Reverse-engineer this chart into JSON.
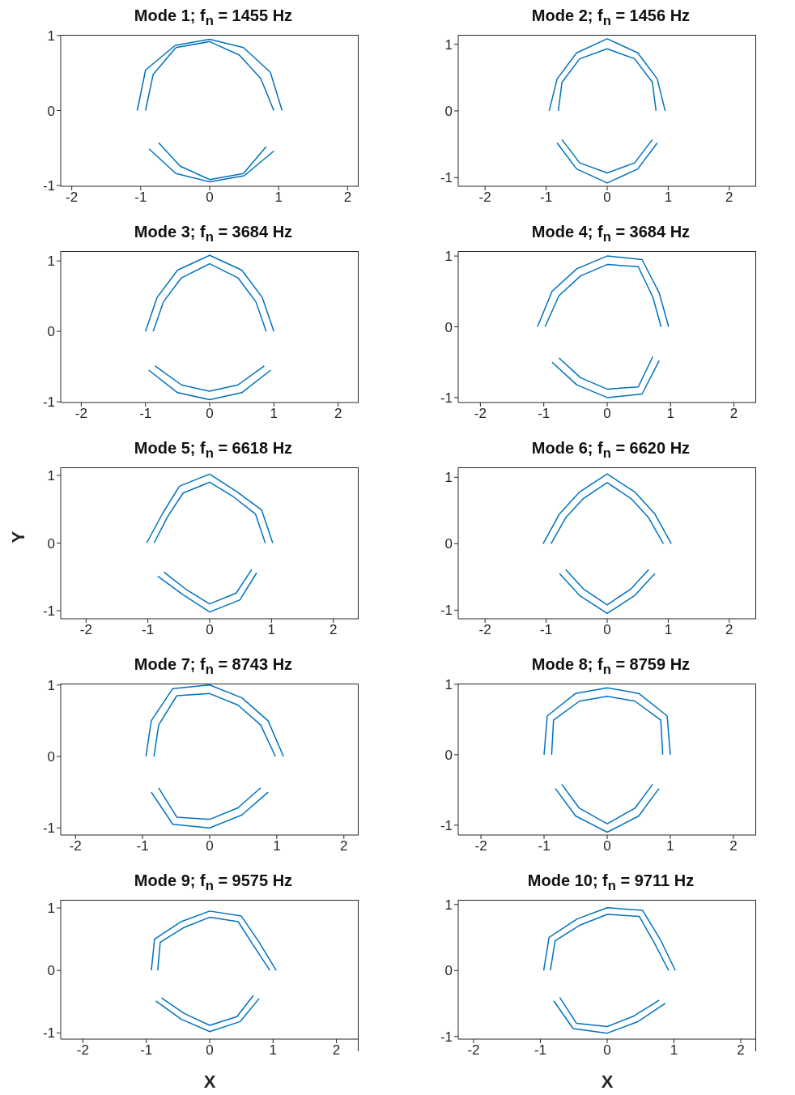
{
  "chart_data": [
    {
      "type": "line",
      "title": "Mode 1; f$_{n}$ = 1455 Hz",
      "xlim": [
        -2.16,
        2.16
      ],
      "ylim": [
        -1.01,
        1.01
      ],
      "xticks": [
        -2,
        -1,
        0,
        1,
        2
      ],
      "yticks": [
        -1,
        0,
        1
      ],
      "series": [
        {
          "color": "#0072bd",
          "x": [
            -1.05,
            -0.93,
            -0.5,
            0,
            0.49,
            0.88,
            1.05
          ],
          "values": [
            0,
            0.54,
            0.87,
            0.95,
            0.84,
            0.51,
            0
          ]
        },
        {
          "color": "#0072bd",
          "x": [
            -0.88,
            -0.49,
            0,
            0.5,
            0.93
          ],
          "values": [
            -0.51,
            -0.84,
            -0.95,
            -0.87,
            -0.54
          ]
        },
        {
          "color": "#0072bd",
          "x": [
            -0.93,
            -0.82,
            -0.49,
            0,
            0.43,
            0.74,
            0.93
          ],
          "values": [
            0,
            0.48,
            0.84,
            0.92,
            0.74,
            0.43,
            0
          ]
        },
        {
          "color": "#0072bd",
          "x": [
            -0.74,
            -0.43,
            0,
            0.49,
            0.82
          ],
          "values": [
            -0.43,
            -0.74,
            -0.92,
            -0.84,
            -0.48
          ]
        }
      ]
    },
    {
      "type": "line",
      "title": "Mode 2; f$_{n}$ = 1456 Hz",
      "xlim": [
        -2.44,
        2.44
      ],
      "ylim": [
        -1.13,
        1.14
      ],
      "xticks": [
        -2,
        -1,
        0,
        1,
        2
      ],
      "yticks": [
        -1,
        0,
        1
      ],
      "series": [
        {
          "color": "#0072bd",
          "x": [
            -0.95,
            -0.82,
            -0.5,
            0,
            0.5,
            0.82,
            0.95
          ],
          "values": [
            0,
            0.48,
            0.87,
            1.08,
            0.87,
            0.48,
            0
          ]
        },
        {
          "color": "#0072bd",
          "x": [
            -0.82,
            -0.5,
            0,
            0.5,
            0.82
          ],
          "values": [
            -0.48,
            -0.87,
            -1.08,
            -0.87,
            -0.48
          ]
        },
        {
          "color": "#0072bd",
          "x": [
            -0.8,
            -0.74,
            -0.45,
            0,
            0.45,
            0.74,
            0.8
          ],
          "values": [
            0,
            0.43,
            0.78,
            0.93,
            0.78,
            0.43,
            0
          ]
        },
        {
          "color": "#0072bd",
          "x": [
            -0.74,
            -0.45,
            0,
            0.45,
            0.74
          ],
          "values": [
            -0.43,
            -0.78,
            -0.93,
            -0.78,
            -0.43
          ]
        }
      ]
    },
    {
      "type": "line",
      "title": "Mode 3; f$_{n}$ = 3684 Hz",
      "xlim": [
        -2.32,
        2.32
      ],
      "ylim": [
        -1.01,
        1.14
      ],
      "xticks": [
        -2,
        -1,
        0,
        1,
        2
      ],
      "yticks": [
        -1,
        0,
        1
      ],
      "series": [
        {
          "color": "#0072bd",
          "x": [
            -1,
            -0.82,
            -0.5,
            0,
            0.5,
            0.82,
            1
          ],
          "values": [
            0,
            0.48,
            0.87,
            1.08,
            0.87,
            0.48,
            0
          ]
        },
        {
          "color": "#0072bd",
          "x": [
            -0.95,
            -0.5,
            0,
            0.5,
            0.95
          ],
          "values": [
            -0.55,
            -0.87,
            -0.97,
            -0.87,
            -0.55
          ]
        },
        {
          "color": "#0072bd",
          "x": [
            -0.88,
            -0.72,
            -0.44,
            0,
            0.44,
            0.72,
            0.88
          ],
          "values": [
            0,
            0.42,
            0.76,
            0.96,
            0.76,
            0.42,
            0
          ]
        },
        {
          "color": "#0072bd",
          "x": [
            -0.85,
            -0.44,
            0,
            0.44,
            0.85
          ],
          "values": [
            -0.49,
            -0.76,
            -0.85,
            -0.76,
            -0.49
          ]
        }
      ]
    },
    {
      "type": "line",
      "title": "Mode 4; f$_{n}$ = 3684 Hz",
      "xlim": [
        -2.35,
        2.35
      ],
      "ylim": [
        -1.07,
        1.07
      ],
      "xticks": [
        -2,
        -1,
        0,
        1,
        2
      ],
      "yticks": [
        -1,
        0,
        1
      ],
      "series": [
        {
          "color": "#0072bd",
          "x": [
            -1.1,
            -0.87,
            -0.48,
            0,
            0.55,
            0.82,
            0.97
          ],
          "values": [
            0,
            0.5,
            0.82,
            1.0,
            0.95,
            0.48,
            0
          ]
        },
        {
          "color": "#0072bd",
          "x": [
            -0.87,
            -0.48,
            0,
            0.55,
            0.82
          ],
          "values": [
            -0.5,
            -0.82,
            -1.0,
            -0.95,
            -0.48
          ]
        },
        {
          "color": "#0072bd",
          "x": [
            -0.98,
            -0.76,
            -0.42,
            0,
            0.49,
            0.72,
            0.85
          ],
          "values": [
            0,
            0.44,
            0.72,
            0.88,
            0.85,
            0.42,
            0
          ]
        },
        {
          "color": "#0072bd",
          "x": [
            -0.76,
            -0.42,
            0,
            0.49,
            0.72
          ],
          "values": [
            -0.44,
            -0.72,
            -0.88,
            -0.85,
            -0.42
          ]
        }
      ]
    },
    {
      "type": "line",
      "title": "Mode 5; f$_{n}$ = 6618 Hz",
      "ylabel": "Y",
      "xlim": [
        -2.41,
        2.41
      ],
      "ylim": [
        -1.12,
        1.12
      ],
      "xticks": [
        -2,
        -1,
        0,
        1,
        2
      ],
      "yticks": [
        -1,
        0,
        1
      ],
      "series": [
        {
          "color": "#0072bd",
          "x": [
            -1.02,
            -0.76,
            -0.49,
            0,
            0.44,
            0.84,
            1.02
          ],
          "values": [
            0,
            0.44,
            0.84,
            1.02,
            0.76,
            0.49,
            0
          ]
        },
        {
          "color": "#0072bd",
          "x": [
            -0.84,
            -0.44,
            0,
            0.49,
            0.76
          ],
          "values": [
            -0.49,
            -0.76,
            -1.02,
            -0.84,
            -0.44
          ]
        },
        {
          "color": "#0072bd",
          "x": [
            -0.9,
            -0.68,
            -0.43,
            0,
            0.39,
            0.74,
            0.9
          ],
          "values": [
            0,
            0.39,
            0.74,
            0.9,
            0.68,
            0.43,
            0
          ]
        },
        {
          "color": "#0072bd",
          "x": [
            -0.74,
            -0.39,
            0,
            0.43,
            0.68
          ],
          "values": [
            -0.43,
            -0.68,
            -0.9,
            -0.74,
            -0.39
          ]
        }
      ]
    },
    {
      "type": "line",
      "title": "Mode 6; f$_{n}$ = 6620 Hz",
      "xlim": [
        -2.44,
        2.44
      ],
      "ylim": [
        -1.13,
        1.15
      ],
      "xticks": [
        -2,
        -1,
        0,
        1,
        2
      ],
      "yticks": [
        -1,
        0,
        1
      ],
      "series": [
        {
          "color": "#0072bd",
          "x": [
            -1.05,
            -0.78,
            -0.45,
            0,
            0.45,
            0.78,
            1.05
          ],
          "values": [
            0,
            0.45,
            0.78,
            1.05,
            0.78,
            0.45,
            0
          ]
        },
        {
          "color": "#0072bd",
          "x": [
            -0.78,
            -0.45,
            0,
            0.45,
            0.78
          ],
          "values": [
            -0.45,
            -0.78,
            -1.05,
            -0.78,
            -0.45
          ]
        },
        {
          "color": "#0072bd",
          "x": [
            -0.92,
            -0.68,
            -0.39,
            0,
            0.39,
            0.68,
            0.92
          ],
          "values": [
            0,
            0.39,
            0.68,
            0.92,
            0.68,
            0.39,
            0
          ]
        },
        {
          "color": "#0072bd",
          "x": [
            -0.68,
            -0.39,
            0,
            0.39,
            0.68
          ],
          "values": [
            -0.39,
            -0.68,
            -0.92,
            -0.68,
            -0.39
          ]
        }
      ]
    },
    {
      "type": "line",
      "title": "Mode 7; f$_{n}$ = 8743 Hz",
      "xlim": [
        -2.22,
        2.22
      ],
      "ylim": [
        -1.1,
        1.02
      ],
      "xticks": [
        -2,
        -1,
        0,
        1,
        2
      ],
      "yticks": [
        -1,
        0,
        1
      ],
      "series": [
        {
          "color": "#0072bd",
          "x": [
            -0.95,
            -0.87,
            -0.55,
            0,
            0.48,
            0.87,
            1.1
          ],
          "values": [
            0,
            0.5,
            0.95,
            1.0,
            0.82,
            0.5,
            0
          ]
        },
        {
          "color": "#0072bd",
          "x": [
            -0.87,
            -0.55,
            0,
            0.48,
            0.87
          ],
          "values": [
            -0.5,
            -0.95,
            -1.0,
            -0.82,
            -0.5
          ]
        },
        {
          "color": "#0072bd",
          "x": [
            -0.83,
            -0.76,
            -0.49,
            0,
            0.42,
            0.76,
            0.98
          ],
          "values": [
            0,
            0.44,
            0.85,
            0.88,
            0.72,
            0.44,
            0
          ]
        },
        {
          "color": "#0072bd",
          "x": [
            -0.76,
            -0.49,
            0,
            0.42,
            0.76
          ],
          "values": [
            -0.44,
            -0.85,
            -0.88,
            -0.72,
            -0.44
          ]
        }
      ]
    },
    {
      "type": "line",
      "title": "Mode 8; f$_{n}$ = 8759 Hz",
      "xlim": [
        -2.36,
        2.36
      ],
      "ylim": [
        -1.14,
        1.01
      ],
      "xticks": [
        -2,
        -1,
        0,
        1,
        2
      ],
      "yticks": [
        -1,
        0,
        1
      ],
      "series": [
        {
          "color": "#0072bd",
          "x": [
            -1,
            -0.95,
            -0.5,
            0,
            0.5,
            0.95,
            1
          ],
          "values": [
            0,
            0.55,
            0.87,
            0.95,
            0.87,
            0.55,
            0
          ]
        },
        {
          "color": "#0072bd",
          "x": [
            -0.82,
            -0.5,
            0,
            0.5,
            0.82
          ],
          "values": [
            -0.48,
            -0.87,
            -1.1,
            -0.87,
            -0.48
          ]
        },
        {
          "color": "#0072bd",
          "x": [
            -0.88,
            -0.85,
            -0.44,
            0,
            0.44,
            0.85,
            0.88
          ],
          "values": [
            0,
            0.49,
            0.76,
            0.83,
            0.76,
            0.49,
            0
          ]
        },
        {
          "color": "#0072bd",
          "x": [
            -0.72,
            -0.44,
            0,
            0.44,
            0.72
          ],
          "values": [
            -0.42,
            -0.76,
            -0.98,
            -0.76,
            -0.42
          ]
        }
      ]
    },
    {
      "type": "line",
      "title": "Mode 9; f$_{n}$ = 9575 Hz",
      "xlabel": "X",
      "xlim": [
        -2.35,
        2.35
      ],
      "ylim": [
        -1.1,
        1.13
      ],
      "xticks": [
        -2,
        -1,
        0,
        1,
        2
      ],
      "yticks": [
        -1,
        0,
        1
      ],
      "series": [
        {
          "color": "#0072bd",
          "x": [
            -0.92,
            -0.87,
            -0.45,
            0,
            0.5,
            0.78,
            1.05
          ],
          "values": [
            0,
            0.5,
            0.78,
            0.95,
            0.87,
            0.45,
            0
          ]
        },
        {
          "color": "#0072bd",
          "x": [
            -0.85,
            -0.45,
            0,
            0.48,
            0.78
          ],
          "values": [
            -0.49,
            -0.78,
            -0.98,
            -0.82,
            -0.45
          ]
        },
        {
          "color": "#0072bd",
          "x": [
            -0.82,
            -0.78,
            -0.4,
            0,
            0.45,
            0.69,
            0.95
          ],
          "values": [
            0,
            0.45,
            0.69,
            0.85,
            0.78,
            0.4,
            0
          ]
        },
        {
          "color": "#0072bd",
          "x": [
            -0.76,
            -0.4,
            0,
            0.43,
            0.69
          ],
          "values": [
            -0.44,
            -0.69,
            -0.88,
            -0.74,
            -0.4
          ]
        }
      ]
    },
    {
      "type": "line",
      "title": "Mode 10; f$_{n}$ = 9711 Hz",
      "xlabel": "X",
      "xlim": [
        -2.23,
        2.23
      ],
      "ylim": [
        -1.04,
        1.07
      ],
      "xticks": [
        -2,
        -1,
        0,
        1,
        2
      ],
      "yticks": [
        -1,
        0,
        1
      ],
      "series": [
        {
          "color": "#0072bd",
          "x": [
            -0.95,
            -0.87,
            -0.45,
            0,
            0.53,
            0.8,
            1.02
          ],
          "values": [
            0,
            0.5,
            0.78,
            0.95,
            0.91,
            0.46,
            0
          ]
        },
        {
          "color": "#0072bd",
          "x": [
            -0.8,
            -0.51,
            0,
            0.45,
            0.87
          ],
          "values": [
            -0.46,
            -0.88,
            -0.95,
            -0.78,
            -0.5
          ]
        },
        {
          "color": "#0072bd",
          "x": [
            -0.85,
            -0.78,
            -0.4,
            0,
            0.48,
            0.71,
            0.92
          ],
          "values": [
            0,
            0.45,
            0.69,
            0.85,
            0.82,
            0.41,
            0
          ]
        },
        {
          "color": "#0072bd",
          "x": [
            -0.71,
            -0.46,
            0,
            0.4,
            0.78
          ],
          "values": [
            -0.41,
            -0.8,
            -0.85,
            -0.69,
            -0.45
          ]
        }
      ]
    }
  ]
}
